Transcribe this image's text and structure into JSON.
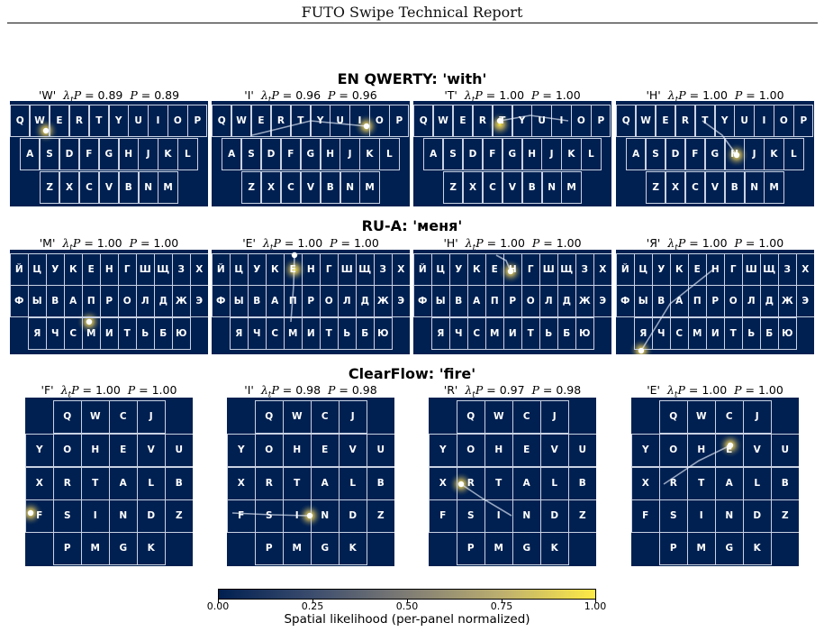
{
  "header": {
    "title": "FUTO Swipe Technical Report"
  },
  "colors": {
    "background": "#002051",
    "key_border": "#c9d2e3",
    "trail": "#e8eefc",
    "glow": "#fdea45"
  },
  "sections": [
    {
      "title": "EN QWERTY: 'with'",
      "layout": "en",
      "rows": [
        [
          "Q",
          "W",
          "E",
          "R",
          "T",
          "Y",
          "U",
          "I",
          "O",
          "P"
        ],
        [
          "A",
          "S",
          "D",
          "F",
          "G",
          "H",
          "J",
          "K",
          "L"
        ],
        [
          "Z",
          "X",
          "C",
          "V",
          "B",
          "N",
          "M"
        ]
      ],
      "panels": [
        {
          "letter": "'W'",
          "lam": "0.89",
          "p": "0.89"
        },
        {
          "letter": "'I'",
          "lam": "0.96",
          "p": "0.96"
        },
        {
          "letter": "'T'",
          "lam": "1.00",
          "p": "1.00"
        },
        {
          "letter": "'H'",
          "lam": "1.00",
          "p": "1.00"
        }
      ]
    },
    {
      "title": "RU-A: 'меня'",
      "layout": "ru",
      "rows": [
        [
          "Й",
          "Ц",
          "У",
          "К",
          "Е",
          "Н",
          "Г",
          "Ш",
          "Щ",
          "З",
          "Х"
        ],
        [
          "Ф",
          "Ы",
          "В",
          "А",
          "П",
          "Р",
          "О",
          "Л",
          "Д",
          "Ж",
          "Э"
        ],
        [
          "Я",
          "Ч",
          "С",
          "М",
          "И",
          "Т",
          "Ь",
          "Б",
          "Ю"
        ]
      ],
      "panels": [
        {
          "letter": "'М'",
          "lam": "1.00",
          "p": "1.00"
        },
        {
          "letter": "'Е'",
          "lam": "1.00",
          "p": "1.00"
        },
        {
          "letter": "'Н'",
          "lam": "1.00",
          "p": "1.00"
        },
        {
          "letter": "'Я'",
          "lam": "1.00",
          "p": "1.00"
        }
      ]
    },
    {
      "title": "ClearFlow: 'fire'",
      "layout": "cf",
      "rows": [
        [
          "",
          "Q",
          "W",
          "C",
          "J",
          ""
        ],
        [
          "Y",
          "O",
          "H",
          "E",
          "V",
          "U"
        ],
        [
          "X",
          "R",
          "T",
          "A",
          "L",
          "B"
        ],
        [
          "F",
          "S",
          "I",
          "N",
          "D",
          "Z"
        ],
        [
          "",
          "P",
          "M",
          "G",
          "K",
          ""
        ]
      ],
      "panels": [
        {
          "letter": "'F'",
          "lam": "1.00",
          "p": "1.00"
        },
        {
          "letter": "'I'",
          "lam": "0.98",
          "p": "0.98"
        },
        {
          "letter": "'R'",
          "lam": "0.97",
          "p": "0.98"
        },
        {
          "letter": "'E'",
          "lam": "1.00",
          "p": "1.00"
        }
      ]
    }
  ],
  "colorbar": {
    "ticks": [
      "0.00",
      "0.25",
      "0.50",
      "0.75",
      "1.00"
    ],
    "label": "Spatial likelihood (per-panel normalized)"
  }
}
